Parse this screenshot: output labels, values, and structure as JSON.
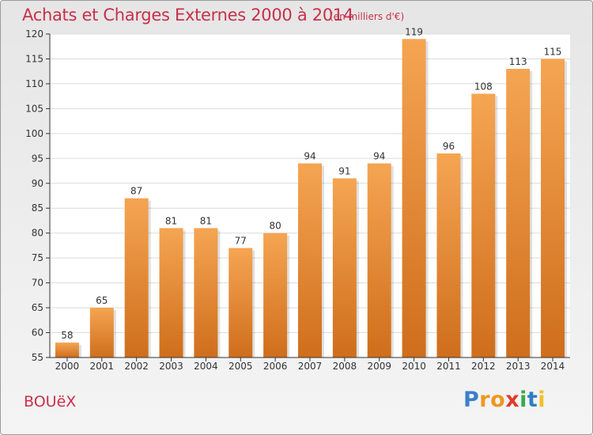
{
  "header": {
    "title": "Achats et Charges Externes 2000 à 2014",
    "unit": "(en milliers d'€)"
  },
  "footer": {
    "commune": "BOUëX",
    "brand_letters": [
      "P",
      "r",
      "o",
      "x",
      "i",
      "t",
      "i"
    ],
    "brand_colors": [
      "#3d7fc8",
      "#f0961e",
      "#f0961e",
      "#e23a2c",
      "#3aa84a",
      "#2f7ec2",
      "#f0c02a"
    ]
  },
  "colors": {
    "bar_top": "#f5a552",
    "bar_bottom": "#cf6e1c",
    "accent": "#c8304a"
  },
  "chart_data": {
    "type": "bar",
    "categories": [
      "2000",
      "2001",
      "2002",
      "2003",
      "2004",
      "2005",
      "2006",
      "2007",
      "2008",
      "2009",
      "2010",
      "2011",
      "2012",
      "2013",
      "2014"
    ],
    "values": [
      58,
      65,
      87,
      81,
      81,
      77,
      80,
      94,
      91,
      94,
      119,
      96,
      108,
      113,
      115
    ],
    "title": "Achats et Charges Externes 2000 à 2014",
    "ylim": [
      55,
      120
    ],
    "yticks": [
      55,
      60,
      65,
      70,
      75,
      80,
      85,
      90,
      95,
      100,
      105,
      110,
      115,
      120
    ],
    "grid": true
  }
}
